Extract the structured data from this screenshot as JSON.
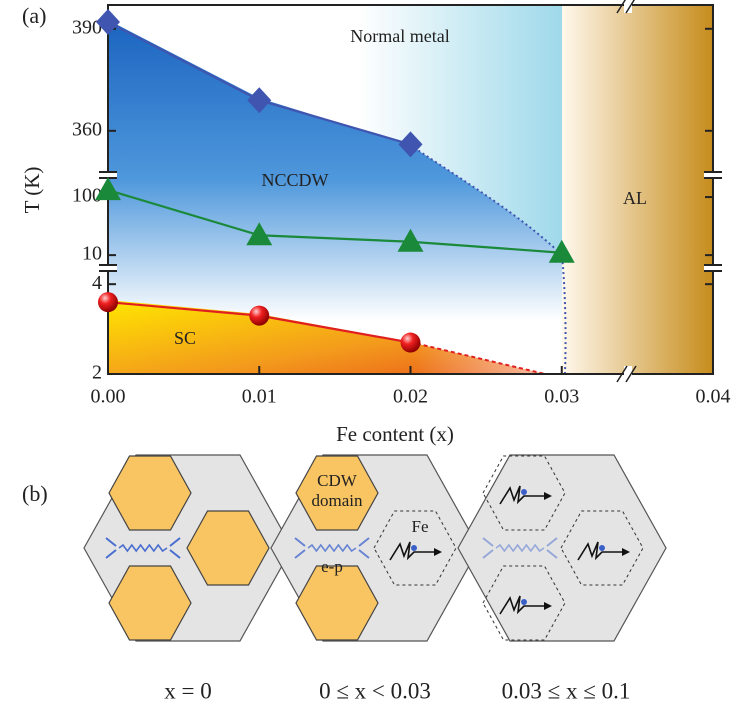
{
  "chart_data": {
    "type": "line",
    "panel_label": "(a)",
    "xlabel": "Fe content (x)",
    "ylabel": "T (K)",
    "xlim": [
      0,
      0.04
    ],
    "xticks": [
      {
        "value": 0,
        "label": "0.00"
      },
      0.01,
      0.02,
      0.03,
      0.04
    ],
    "region_labels": [
      "Normal metal",
      "NCCDW",
      "SC",
      "AL"
    ],
    "segments": [
      {
        "ylim": [
          347,
          397
        ],
        "yticks": [
          360,
          390
        ],
        "scale": "linear",
        "series": [
          {
            "color": "#3f55b0",
            "marker": "diamond",
            "x": [
              0,
              0.01,
              0.02
            ],
            "values": [
              392,
              369,
              356
            ]
          }
        ]
      },
      {
        "ylim": [
          6,
          240
        ],
        "yticks": [
          10,
          100
        ],
        "scale": "log",
        "series": [
          {
            "color": "#1a8a3a",
            "marker": "triangle",
            "x": [
              0,
              0.01,
              0.02,
              0.03
            ],
            "values": [
              132,
              22,
              17,
              11
            ]
          }
        ]
      },
      {
        "ylim": [
          2,
          4.36
        ],
        "yticks": [
          2,
          4
        ],
        "scale": "linear",
        "series": [
          {
            "color": "#e02020",
            "marker": "circle",
            "x": [
              0,
              0.01,
              0.02
            ],
            "values": [
              3.6,
              3.3,
              2.7
            ]
          }
        ]
      }
    ]
  },
  "panel_b": {
    "label": "(b)",
    "captions": [
      "x = 0",
      "0 ≤ x < 0.03",
      "0.03 ≤ x ≤ 0.1"
    ],
    "cdw_label": [
      "CDW",
      "domain"
    ],
    "ep_label": "e-p",
    "fe_label": "Fe"
  }
}
